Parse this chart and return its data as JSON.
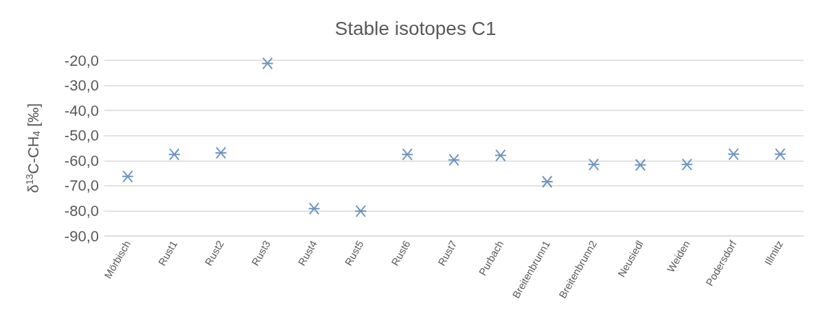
{
  "chart_data": {
    "type": "scatter",
    "title": "Stable isotopes C1",
    "ylabel": "δ$^{13}$C-CH$_{4}$ [‰]",
    "categories": [
      "Mörbisch",
      "Rust1",
      "Rust2",
      "Rust3",
      "Rust4",
      "Rust5",
      "Rust6",
      "Rust7",
      "Purbach",
      "Breitenbrunn1",
      "Breitenbrunn2",
      "Neusiedl",
      "Weiden",
      "Podersdorf",
      "Illmitz"
    ],
    "values": [
      -66.3,
      -57.5,
      -56.9,
      -21.2,
      -79.1,
      -80.1,
      -57.5,
      -59.7,
      -57.9,
      -68.4,
      -61.5,
      -61.7,
      -61.5,
      -57.4,
      -57.4
    ],
    "color": "#4a7ab0",
    "marker": "cross",
    "grid": "y",
    "ylim": [
      -90,
      -20
    ],
    "yticks": [
      {
        "value": -90,
        "label": "-90,0"
      },
      {
        "value": -80,
        "label": "-80,0"
      },
      {
        "value": -70,
        "label": "-70,0"
      },
      {
        "value": -60,
        "label": "-60,0"
      },
      {
        "value": -50,
        "label": "-50,0"
      },
      {
        "value": -40,
        "label": "-40,0"
      },
      {
        "value": -30,
        "label": "-30,0"
      },
      {
        "value": -20,
        "label": "-20,0"
      }
    ]
  }
}
